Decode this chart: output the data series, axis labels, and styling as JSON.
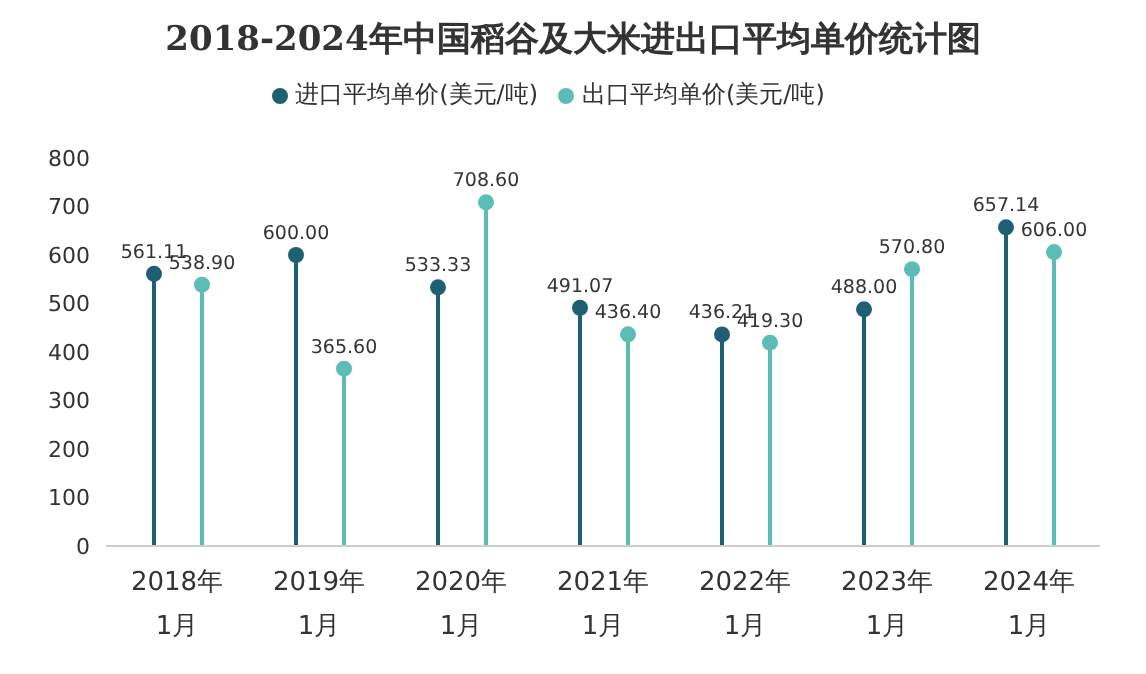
{
  "chart_data": {
    "type": "lollipop",
    "title": "2018-2024年中国稻谷及大米进出口平均单价统计图",
    "categories": [
      "2018年\n1月",
      "2019年\n1月",
      "2020年\n1月",
      "2021年\n1月",
      "2022年\n1月",
      "2023年\n1月",
      "2024年\n1月"
    ],
    "series": [
      {
        "name": "进口平均单价(美元/吨)",
        "color": "#1f5f73",
        "values": [
          561.11,
          600.0,
          533.33,
          491.07,
          436.21,
          488.0,
          657.14
        ],
        "value_labels": [
          "561.11",
          "600.00",
          "533.33",
          "491.07",
          "436.21",
          "488.00",
          "657.14"
        ]
      },
      {
        "name": "出口平均单价(美元/吨)",
        "color": "#5bbdb5",
        "values": [
          538.9,
          365.6,
          708.6,
          436.4,
          419.3,
          570.8,
          606.0
        ],
        "value_labels": [
          "538.90",
          "365.60",
          "708.60",
          "436.40",
          "419.30",
          "570.80",
          "606.00"
        ]
      }
    ],
    "ylim": [
      0,
      800
    ],
    "yticks": [
      0,
      100,
      200,
      300,
      400,
      500,
      600,
      700,
      800
    ],
    "legend": "top",
    "grid": false,
    "marker": "circle"
  }
}
